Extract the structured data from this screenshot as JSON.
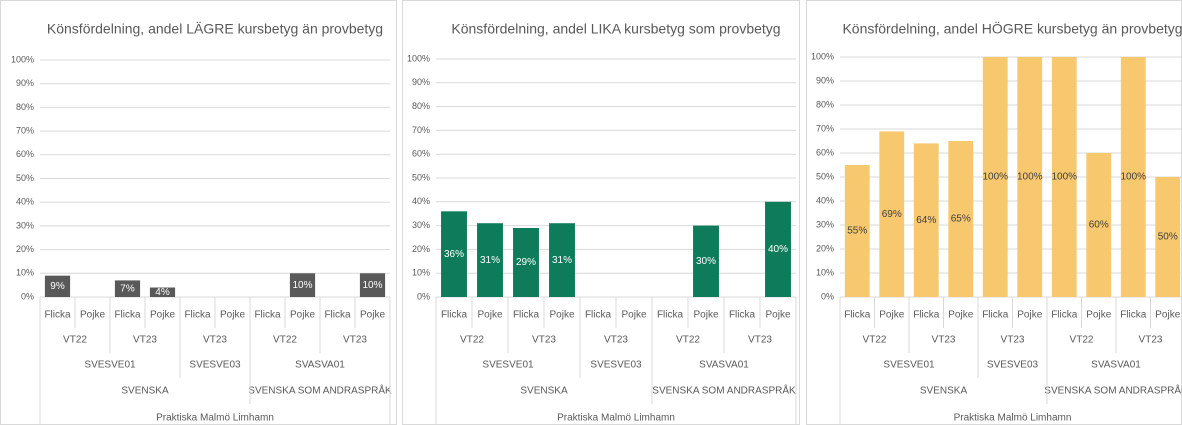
{
  "chart_data": [
    {
      "type": "bar",
      "title": "Könsfördelning, andel LÄGRE kursbetyg än provbetyg",
      "categories": [
        "Flicka",
        "Pojke",
        "Flicka",
        "Pojke",
        "Flicka",
        "Pojke",
        "Flicka",
        "Pojke",
        "Flicka",
        "Pojke"
      ],
      "category_levels": [
        [
          "VT22",
          "VT22",
          "VT23",
          "VT23",
          "VT23",
          "VT23",
          "VT22",
          "VT22",
          "VT23",
          "VT23"
        ],
        [
          "SVESVE01",
          "SVESVE01",
          "SVESVE01",
          "SVESVE01",
          "SVESVE03",
          "SVESVE03",
          "SVASVA01",
          "SVASVA01",
          "SVASVA01",
          "SVASVA01"
        ],
        [
          "SVENSKA",
          "SVENSKA",
          "SVENSKA",
          "SVENSKA",
          "SVENSKA",
          "SVENSKA",
          "SVENSKA SOM ANDRASPRÅK",
          "SVENSKA SOM ANDRASPRÅK",
          "SVENSKA SOM ANDRASPRÅK",
          "SVENSKA SOM ANDRASPRÅK"
        ],
        [
          "Praktiska Malmö Limhamn",
          "Praktiska Malmö Limhamn",
          "Praktiska Malmö Limhamn",
          "Praktiska Malmö Limhamn",
          "Praktiska Malmö Limhamn",
          "Praktiska Malmö Limhamn",
          "Praktiska Malmö Limhamn",
          "Praktiska Malmö Limhamn",
          "Praktiska Malmö Limhamn",
          "Praktiska Malmö Limhamn"
        ]
      ],
      "values": [
        9,
        null,
        7,
        4,
        null,
        null,
        null,
        10,
        null,
        10
      ],
      "value_labels": [
        "9%",
        null,
        "7%",
        "4%",
        null,
        null,
        null,
        "10%",
        null,
        "10%"
      ],
      "color": "#595959",
      "label_color": "#ffffff",
      "ylim": [
        0,
        100
      ],
      "yticks": [
        {
          "value": 0,
          "label": "0%"
        },
        {
          "value": 10,
          "label": "10%"
        },
        {
          "value": 20,
          "label": "20%"
        },
        {
          "value": 30,
          "label": "30%"
        },
        {
          "value": 40,
          "label": "40%"
        },
        {
          "value": 50,
          "label": "50%"
        },
        {
          "value": 60,
          "label": "60%"
        },
        {
          "value": 70,
          "label": "70%"
        },
        {
          "value": 80,
          "label": "80%"
        },
        {
          "value": 90,
          "label": "90%"
        },
        {
          "value": 100,
          "label": "100%"
        }
      ],
      "grid": true
    },
    {
      "type": "bar",
      "title": "Könsfördelning, andel LIKA kursbetyg som provbetyg",
      "categories": [
        "Flicka",
        "Pojke",
        "Flicka",
        "Pojke",
        "Flicka",
        "Pojke",
        "Flicka",
        "Pojke",
        "Flicka",
        "Pojke"
      ],
      "category_levels": [
        [
          "VT22",
          "VT22",
          "VT23",
          "VT23",
          "VT23",
          "VT23",
          "VT22",
          "VT22",
          "VT23",
          "VT23"
        ],
        [
          "SVESVE01",
          "SVESVE01",
          "SVESVE01",
          "SVESVE01",
          "SVESVE03",
          "SVESVE03",
          "SVASVA01",
          "SVASVA01",
          "SVASVA01",
          "SVASVA01"
        ],
        [
          "SVENSKA",
          "SVENSKA",
          "SVENSKA",
          "SVENSKA",
          "SVENSKA",
          "SVENSKA",
          "SVENSKA SOM ANDRASPRÅK",
          "SVENSKA SOM ANDRASPRÅK",
          "SVENSKA SOM ANDRASPRÅK",
          "SVENSKA SOM ANDRASPRÅK"
        ],
        [
          "Praktiska Malmö Limhamn",
          "Praktiska Malmö Limhamn",
          "Praktiska Malmö Limhamn",
          "Praktiska Malmö Limhamn",
          "Praktiska Malmö Limhamn",
          "Praktiska Malmö Limhamn",
          "Praktiska Malmö Limhamn",
          "Praktiska Malmö Limhamn",
          "Praktiska Malmö Limhamn",
          "Praktiska Malmö Limhamn"
        ]
      ],
      "values": [
        36,
        31,
        29,
        31,
        null,
        null,
        null,
        30,
        null,
        40
      ],
      "value_labels": [
        "36%",
        "31%",
        "29%",
        "31%",
        null,
        null,
        null,
        "30%",
        null,
        "40%"
      ],
      "color": "#0e7c5a",
      "label_color": "#ffffff",
      "ylim": [
        0,
        100
      ],
      "yticks": [
        {
          "value": 0,
          "label": "0%"
        },
        {
          "value": 10,
          "label": "10%"
        },
        {
          "value": 20,
          "label": "20%"
        },
        {
          "value": 30,
          "label": "30%"
        },
        {
          "value": 40,
          "label": "40%"
        },
        {
          "value": 50,
          "label": "50%"
        },
        {
          "value": 60,
          "label": "60%"
        },
        {
          "value": 70,
          "label": "70%"
        },
        {
          "value": 80,
          "label": "80%"
        },
        {
          "value": 90,
          "label": "90%"
        },
        {
          "value": 100,
          "label": "100%"
        }
      ],
      "grid": true
    },
    {
      "type": "bar",
      "title": "Könsfördelning, andel HÖGRE kursbetyg än provbetyg",
      "categories": [
        "Flicka",
        "Pojke",
        "Flicka",
        "Pojke",
        "Flicka",
        "Pojke",
        "Flicka",
        "Pojke",
        "Flicka",
        "Pojke"
      ],
      "category_levels": [
        [
          "VT22",
          "VT22",
          "VT23",
          "VT23",
          "VT23",
          "VT23",
          "VT22",
          "VT22",
          "VT23",
          "VT23"
        ],
        [
          "SVESVE01",
          "SVESVE01",
          "SVESVE01",
          "SVESVE01",
          "SVESVE03",
          "SVESVE03",
          "SVASVA01",
          "SVASVA01",
          "SVASVA01",
          "SVASVA01"
        ],
        [
          "SVENSKA",
          "SVENSKA",
          "SVENSKA",
          "SVENSKA",
          "SVENSKA",
          "SVENSKA",
          "SVENSKA SOM ANDRASPRÅK",
          "SVENSKA SOM ANDRASPRÅK",
          "SVENSKA SOM ANDRASPRÅK",
          "SVENSKA SOM ANDRASPRÅK"
        ],
        [
          "Praktiska Malmö Limhamn",
          "Praktiska Malmö Limhamn",
          "Praktiska Malmö Limhamn",
          "Praktiska Malmö Limhamn",
          "Praktiska Malmö Limhamn",
          "Praktiska Malmö Limhamn",
          "Praktiska Malmö Limhamn",
          "Praktiska Malmö Limhamn",
          "Praktiska Malmö Limhamn",
          "Praktiska Malmö Limhamn"
        ]
      ],
      "values": [
        55,
        69,
        64,
        65,
        100,
        100,
        100,
        60,
        100,
        50
      ],
      "value_labels": [
        "55%",
        "69%",
        "64%",
        "65%",
        "100%",
        "100%",
        "100%",
        "60%",
        "100%",
        "50%"
      ],
      "color": "#f8c86e",
      "label_color": "#404040",
      "ylim": [
        0,
        100
      ],
      "yticks": [
        {
          "value": 0,
          "label": "0%"
        },
        {
          "value": 10,
          "label": "10%"
        },
        {
          "value": 20,
          "label": "20%"
        },
        {
          "value": 30,
          "label": "30%"
        },
        {
          "value": 40,
          "label": "40%"
        },
        {
          "value": 50,
          "label": "50%"
        },
        {
          "value": 60,
          "label": "60%"
        },
        {
          "value": 70,
          "label": "70%"
        },
        {
          "value": 80,
          "label": "80%"
        },
        {
          "value": 90,
          "label": "90%"
        },
        {
          "value": 100,
          "label": "100%"
        }
      ],
      "grid": true
    }
  ]
}
